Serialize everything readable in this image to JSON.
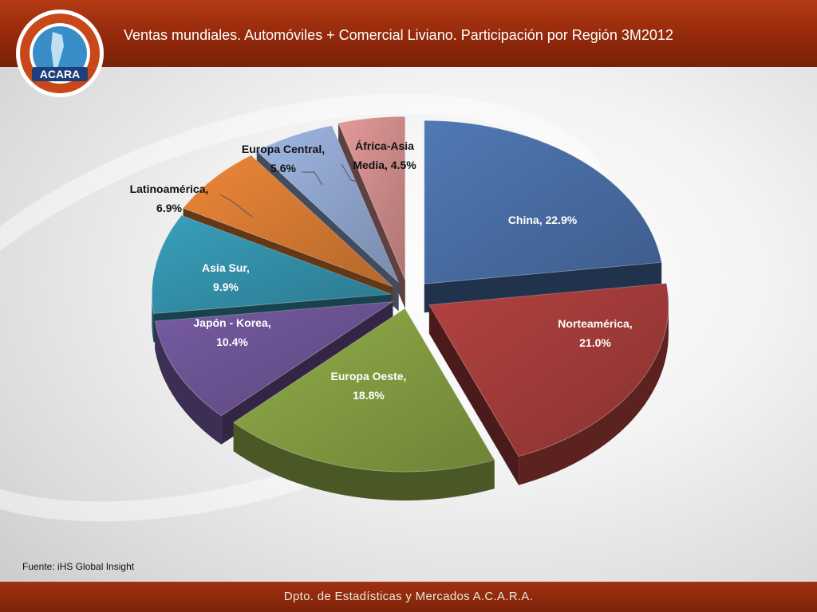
{
  "title": "Ventas mundiales. Automóviles + Comercial Liviano. Participación por Región 3M2012",
  "source": "Fuente: iHS Global Insight",
  "footer": "Dpto. de Estadísticas y Mercados A.C.A.R.A.",
  "logo": {
    "text": "ACARA"
  },
  "colors": {
    "header": "#93290b",
    "footer": "#7d230a"
  },
  "chart_data": {
    "type": "pie",
    "title": "Ventas mundiales. Automóviles + Comercial Liviano. Participación por Región 3M2012",
    "style": "3d-exploded",
    "slices": [
      {
        "label": "China",
        "value": 22.9,
        "text": "China, 22.9%",
        "color": "#4a70a8"
      },
      {
        "label": "Norteamérica",
        "value": 21.0,
        "text": "Norteamérica, 21.0%",
        "color": "#a63d3b"
      },
      {
        "label": "Europa Oeste",
        "value": 18.8,
        "text": "Europa Oeste, 18.8%",
        "color": "#86a043"
      },
      {
        "label": "Japón - Korea",
        "value": 10.4,
        "text": "Japón - Korea, 10.4%",
        "color": "#6e5596"
      },
      {
        "label": "Asia Sur",
        "value": 9.9,
        "text": "Asia Sur, 9.9%",
        "color": "#3593ad"
      },
      {
        "label": "Latinoamérica",
        "value": 6.9,
        "text": "Latinoamérica, 6.9%",
        "color": "#db7d34"
      },
      {
        "label": "Europa Central",
        "value": 5.6,
        "text": "Europa Central, 5.6%",
        "color": "#93a9d3"
      },
      {
        "label": "África-Asia Media",
        "value": 4.5,
        "text": "África-Asia Media, 4.5%",
        "color": "#d38f8e"
      }
    ]
  }
}
